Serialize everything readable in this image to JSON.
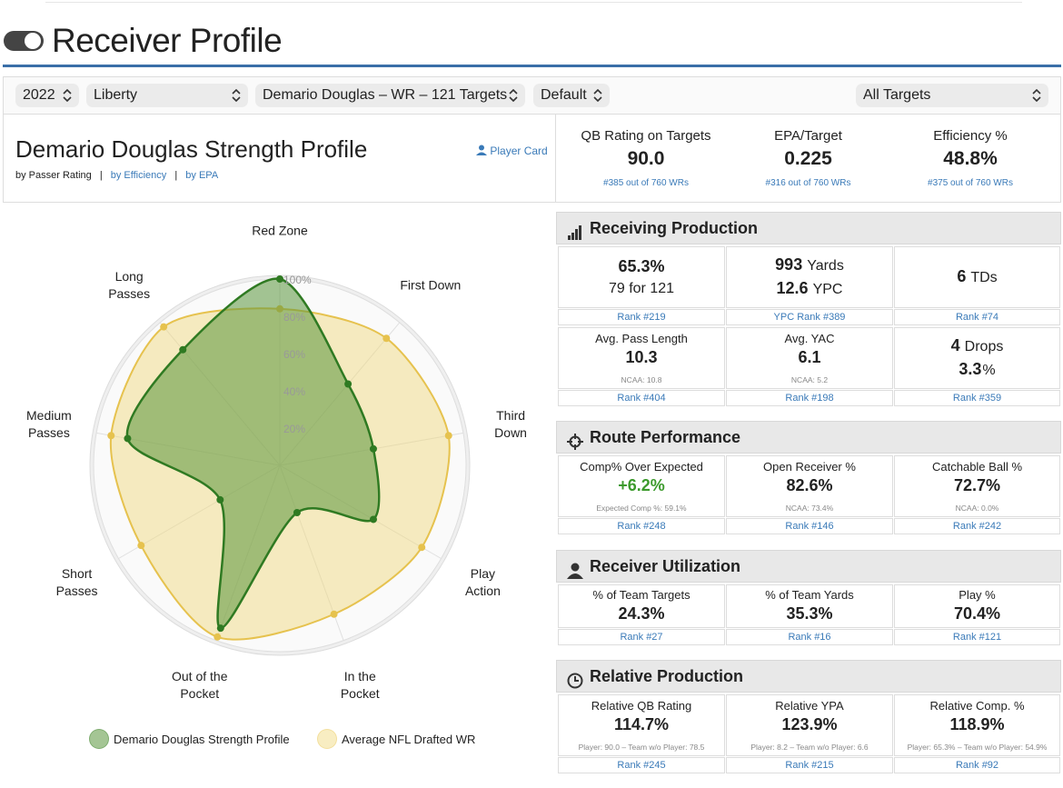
{
  "header": {
    "title": "Receiver Profile"
  },
  "filters": [
    "2022",
    "Liberty",
    "Demario Douglas – WR – 121 Targets",
    "Default",
    "All Targets"
  ],
  "profile": {
    "title": "Demario Douglas Strength Profile",
    "player_card": "Player Card",
    "sort_label": "by Passer Rating",
    "separator": "|",
    "sort_links": [
      "by Efficiency",
      "by EPA"
    ]
  },
  "summary": [
    {
      "label": "QB Rating on Targets",
      "value": "90.0",
      "rank": "#385 out of 760 WRs"
    },
    {
      "label": "EPA/Target",
      "value": "0.225",
      "rank": "#316 out of 760 WRs"
    },
    {
      "label": "Efficiency %",
      "value": "48.8%",
      "rank": "#375 out of 760 WRs"
    }
  ],
  "chart_data": {
    "type": "radar",
    "axes": [
      "Red Zone",
      "First Down",
      "Third Down",
      "Play Action",
      "In the Pocket",
      "Out of the Pocket",
      "Short Passes",
      "Medium Passes",
      "Long Passes"
    ],
    "rlim": [
      0,
      100
    ],
    "rticks": [
      {
        "value": 20,
        "label": "20%"
      },
      {
        "value": 40,
        "label": "40%"
      },
      {
        "value": 60,
        "label": "60%"
      },
      {
        "value": 80,
        "label": "80%"
      },
      {
        "value": 100,
        "label": "100%"
      }
    ],
    "series": [
      {
        "name": "Demario Douglas Strength Profile",
        "color": "#2f7a22",
        "values": [
          100,
          57,
          51,
          58,
          27,
          93,
          37,
          83,
          81
        ]
      },
      {
        "name": "Average NFL Drafted WR",
        "color": "#e6c24e",
        "values": [
          84,
          89,
          92,
          88,
          85,
          98,
          86,
          92,
          97
        ]
      }
    ],
    "legend": "bottom"
  },
  "panels": [
    {
      "title": "Receiving Production",
      "rows": [
        [
          {
            "value": "65.3%",
            "sub": "79 for 121",
            "rank": "Rank #219"
          },
          {
            "value": "993",
            "unit": "Yards",
            "value2": "12.6",
            "unit2": "YPC",
            "rank": "YPC Rank #389"
          },
          {
            "value": "6",
            "unit": "TDs",
            "rank": "Rank #74"
          }
        ],
        [
          {
            "label": "Avg. Pass Length",
            "value": "10.3",
            "note": "NCAA: 10.8",
            "rank": "Rank #404"
          },
          {
            "label": "Avg. YAC",
            "value": "6.1",
            "note": "NCAA: 5.2",
            "rank": "Rank #198"
          },
          {
            "value": "4",
            "unit": "Drops",
            "value2": "3.3",
            "unit2": "%",
            "rank": "Rank #359"
          }
        ]
      ]
    },
    {
      "title": "Route Performance",
      "rows": [
        [
          {
            "label": "Comp% Over Expected",
            "value": "+6.2%",
            "value_color": "#3c9a2c",
            "note": "Expected Comp %: 59.1%",
            "rank": "Rank #248"
          },
          {
            "label": "Open Receiver %",
            "value": "82.6%",
            "note": "NCAA: 73.4%",
            "rank": "Rank #146"
          },
          {
            "label": "Catchable Ball %",
            "value": "72.7%",
            "note": "NCAA: 0.0%",
            "rank": "Rank #242"
          }
        ]
      ]
    },
    {
      "title": "Receiver Utilization",
      "rows": [
        [
          {
            "label": "% of Team Targets",
            "value": "24.3%",
            "rank": "Rank #27"
          },
          {
            "label": "% of Team Yards",
            "value": "35.3%",
            "rank": "Rank #16"
          },
          {
            "label": "Play %",
            "value": "70.4%",
            "rank": "Rank #121"
          }
        ]
      ]
    },
    {
      "title": "Relative Production",
      "rows": [
        [
          {
            "label": "Relative QB Rating",
            "value": "114.7%",
            "note": "Player: 90.0 – Team w/o Player: 78.5",
            "rank": "Rank #245"
          },
          {
            "label": "Relative YPA",
            "value": "123.9%",
            "note": "Player: 8.2 – Team w/o Player: 6.6",
            "rank": "Rank #215"
          },
          {
            "label": "Relative Comp. %",
            "value": "118.9%",
            "note": "Player: 65.3% – Team w/o Player: 54.9%",
            "rank": "Rank #92"
          }
        ]
      ]
    }
  ]
}
